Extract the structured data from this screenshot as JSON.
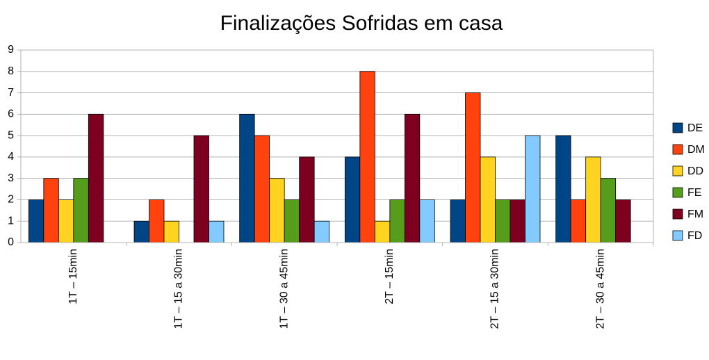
{
  "chart_data": {
    "type": "bar",
    "title": "Finalizações Sofridas em casa",
    "categories": [
      "1T – 15min",
      "1T – 15 a 30min",
      "1T – 30 a 45min",
      "2T – 15min",
      "2T – 15 a 30min",
      "2T – 30 a 45min"
    ],
    "series": [
      {
        "name": "DE",
        "color": "#004586",
        "values": [
          2,
          1,
          6,
          4,
          2,
          5
        ]
      },
      {
        "name": "DM",
        "color": "#ff420e",
        "values": [
          3,
          2,
          5,
          8,
          7,
          2
        ]
      },
      {
        "name": "DD",
        "color": "#ffd320",
        "values": [
          2,
          1,
          3,
          1,
          4,
          4
        ]
      },
      {
        "name": "FE",
        "color": "#579d1c",
        "values": [
          3,
          0,
          2,
          2,
          2,
          3
        ]
      },
      {
        "name": "FM",
        "color": "#7e0021",
        "values": [
          6,
          5,
          4,
          6,
          2,
          2
        ]
      },
      {
        "name": "FD",
        "color": "#83caff",
        "values": [
          0,
          1,
          1,
          2,
          5,
          0
        ]
      }
    ],
    "ylim": [
      0,
      9
    ],
    "yticks": [
      0,
      1,
      2,
      3,
      4,
      5,
      6,
      7,
      8,
      9
    ],
    "grid": true,
    "legend": "right"
  }
}
